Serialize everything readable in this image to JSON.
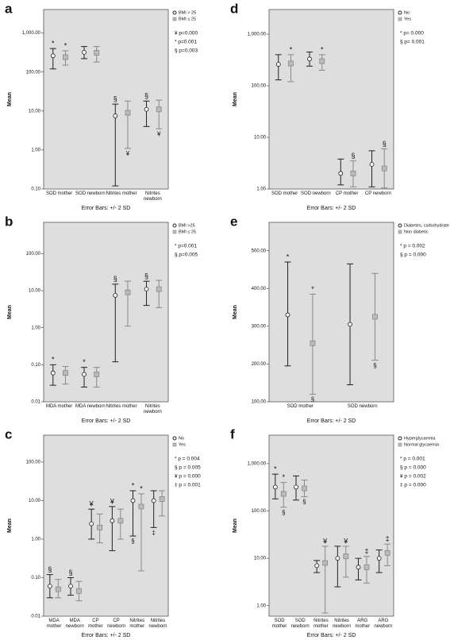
{
  "chart_data": [
    {
      "type": "errorbar",
      "panel": "a",
      "y_label": "Mean",
      "x_label": "Error Bars: +/- 2 SD",
      "log": true,
      "ylim": [
        0.1,
        4000
      ],
      "yticks": [
        {
          "value": 0.1,
          "label": "0.10"
        },
        {
          "value": 1,
          "label": "1.00"
        },
        {
          "value": 10,
          "label": "10.00"
        },
        {
          "value": 100,
          "label": "100.00"
        },
        {
          "value": 1000,
          "label": "1,000.00"
        }
      ],
      "categories": [
        "SOD mother",
        "SOD newborn",
        "Nitrites mother",
        "Nitrites newborn"
      ],
      "series": [
        {
          "name": "BMI > 25",
          "marker": "circle",
          "color": "#222222",
          "values": [
            260,
            320,
            7.5,
            11
          ],
          "lower": [
            120,
            220,
            0.12,
            4
          ],
          "upper": [
            400,
            450,
            15,
            18
          ],
          "above": [
            "*",
            null,
            "§",
            "§"
          ],
          "below": [
            null,
            null,
            null,
            null
          ]
        },
        {
          "name": "BMI ≤ 25",
          "marker": "square",
          "color": "#888888",
          "values": [
            240,
            310,
            9,
            11
          ],
          "lower": [
            150,
            180,
            1.1,
            3.5
          ],
          "upper": [
            350,
            450,
            18,
            19
          ],
          "above": [
            "*",
            null,
            null,
            null
          ],
          "below": [
            null,
            null,
            "¥",
            "¥"
          ]
        }
      ],
      "stats": [
        "¥ p=0.000",
        "* p=0.001",
        "§ p=0.003"
      ]
    },
    {
      "type": "errorbar",
      "panel": "b",
      "y_label": "Mean",
      "x_label": "Error Bars: +/- 2 SD",
      "log": true,
      "ylim": [
        0.01,
        700
      ],
      "yticks": [
        {
          "value": 0.01,
          "label": "0.01"
        },
        {
          "value": 0.1,
          "label": "0.10"
        },
        {
          "value": 1,
          "label": "1.00"
        },
        {
          "value": 10,
          "label": "10.00"
        },
        {
          "value": 100,
          "label": "100.00"
        }
      ],
      "categories": [
        "MDA mother",
        "MDA newborn",
        "Nitrites mother",
        "Nitrites newborn"
      ],
      "series": [
        {
          "name": "BMI >25",
          "marker": "circle",
          "color": "#222222",
          "values": [
            0.06,
            0.055,
            7.5,
            11
          ],
          "lower": [
            0.028,
            0.025,
            0.12,
            4
          ],
          "upper": [
            0.1,
            0.085,
            15,
            18
          ],
          "above": [
            "*",
            "*",
            "§",
            "§"
          ],
          "below": [
            null,
            null,
            null,
            null
          ]
        },
        {
          "name": "BMI ≤ 25",
          "marker": "square",
          "color": "#888888",
          "values": [
            0.06,
            0.055,
            9,
            11
          ],
          "lower": [
            0.03,
            0.025,
            1.1,
            3.5
          ],
          "upper": [
            0.09,
            0.085,
            18,
            19
          ],
          "above": [
            null,
            null,
            null,
            null
          ],
          "below": [
            null,
            null,
            null,
            null
          ]
        }
      ],
      "stats": [
        "* p=0.001",
        "§ p=0.005"
      ]
    },
    {
      "type": "errorbar",
      "panel": "c",
      "y_label": "Mean",
      "x_label": "Error Bars: +/- 2 SD",
      "log": true,
      "ylim": [
        0.01,
        500
      ],
      "yticks": [
        {
          "value": 0.01,
          "label": "0.01"
        },
        {
          "value": 0.1,
          "label": "0.10"
        },
        {
          "value": 1,
          "label": "1.00"
        },
        {
          "value": 10,
          "label": "10.00"
        },
        {
          "value": 100,
          "label": "100.00"
        }
      ],
      "categories": [
        "MDA mother",
        "MDA newborn",
        "CP mother",
        "CP newborn",
        "Nitrites mother",
        "Nitrites newborn"
      ],
      "series": [
        {
          "name": "No",
          "marker": "circle",
          "color": "#222222",
          "values": [
            0.06,
            0.06,
            2.5,
            3,
            10,
            10
          ],
          "lower": [
            0.03,
            0.035,
            1,
            0.5,
            1.2,
            2
          ],
          "upper": [
            0.12,
            0.1,
            6,
            7,
            18,
            18
          ],
          "above": [
            "§",
            "§",
            "¥",
            "¥",
            "*",
            null
          ],
          "below": [
            null,
            null,
            null,
            null,
            "§",
            "‡"
          ]
        },
        {
          "name": "Yes",
          "marker": "square",
          "color": "#888888",
          "values": [
            0.05,
            0.045,
            2,
            3,
            7,
            11
          ],
          "lower": [
            0.03,
            0.025,
            0.8,
            1,
            0.15,
            4
          ],
          "upper": [
            0.09,
            0.08,
            4.5,
            6,
            15,
            18
          ],
          "above": [
            null,
            null,
            null,
            null,
            "*",
            null
          ],
          "below": [
            null,
            null,
            null,
            null,
            null,
            null
          ]
        }
      ],
      "stats": [
        "* p = 0.004",
        "§ p = 0.005",
        "¥ p = 0.000",
        "‡ p = 0.001"
      ]
    },
    {
      "type": "errorbar",
      "panel": "d",
      "y_label": "Mean",
      "x_label": "Error Bars: +/- 2 SD",
      "log": true,
      "ylim": [
        1,
        3000
      ],
      "yticks": [
        {
          "value": 1,
          "label": "1.00"
        },
        {
          "value": 10,
          "label": "10.00"
        },
        {
          "value": 100,
          "label": "100.00"
        },
        {
          "value": 1000,
          "label": "1,000.00"
        }
      ],
      "categories": [
        "SOD mother",
        "SOD newborn",
        "CP mother",
        "CP newborn"
      ],
      "series": [
        {
          "name": "No",
          "marker": "circle",
          "color": "#222222",
          "values": [
            260,
            330,
            2,
            3
          ],
          "lower": [
            130,
            240,
            1.2,
            1.1
          ],
          "upper": [
            400,
            450,
            3.8,
            5.5
          ],
          "above": [
            null,
            null,
            null,
            null
          ],
          "below": [
            null,
            null,
            null,
            null
          ]
        },
        {
          "name": "Yes",
          "marker": "square",
          "color": "#888888",
          "values": [
            270,
            300,
            2,
            2.5
          ],
          "lower": [
            120,
            200,
            1.1,
            1.05
          ],
          "upper": [
            400,
            400,
            3.5,
            6
          ],
          "above": [
            "*",
            "*",
            "§",
            "§"
          ],
          "below": [
            null,
            null,
            null,
            null
          ]
        }
      ],
      "stats": [
        "* p= 0.000",
        "§ p= 0.001"
      ]
    },
    {
      "type": "errorbar",
      "panel": "e",
      "y_label": "Mean",
      "x_label": "Error Bars: +/- 2 SD",
      "log": false,
      "ylim": [
        100,
        575
      ],
      "yticks": [
        {
          "value": 100,
          "label": "100.00"
        },
        {
          "value": 200,
          "label": "200.00"
        },
        {
          "value": 300,
          "label": "300.00"
        },
        {
          "value": 400,
          "label": "400.00"
        },
        {
          "value": 500,
          "label": "500.00"
        }
      ],
      "categories": [
        "SOD mother",
        "SOD newborn"
      ],
      "series": [
        {
          "name": "Diabetes, carbohydrate intolerance",
          "marker": "circle",
          "color": "#222222",
          "values": [
            330,
            305
          ],
          "lower": [
            195,
            145
          ],
          "upper": [
            470,
            465
          ],
          "above": [
            "*",
            null
          ],
          "below": [
            null,
            null
          ]
        },
        {
          "name": "Non diabetic",
          "marker": "square",
          "color": "#888888",
          "values": [
            255,
            325
          ],
          "lower": [
            120,
            210
          ],
          "upper": [
            385,
            440
          ],
          "above": [
            "*",
            null
          ],
          "below": [
            "§",
            "§"
          ]
        }
      ],
      "stats": [
        "* p = 0.002",
        "§ p = 0.000"
      ]
    },
    {
      "type": "errorbar",
      "panel": "f",
      "y_label": "Mean",
      "x_label": "Error Bars: +/- 2 SD",
      "log": true,
      "ylim": [
        0.6,
        4000
      ],
      "yticks": [
        {
          "value": 1,
          "label": "1.00"
        },
        {
          "value": 10,
          "label": "10.00"
        },
        {
          "value": 100,
          "label": "100.00"
        },
        {
          "value": 1000,
          "label": "1,000.00"
        }
      ],
      "categories": [
        "SOD mother",
        "SOD newborn",
        "Nitrites mother",
        "Nitrites newborn",
        "ARG mother",
        "ARG newborn"
      ],
      "series": [
        {
          "name": "Hyperglycaemia",
          "marker": "circle",
          "color": "#222222",
          "values": [
            320,
            320,
            7,
            10,
            6.5,
            10
          ],
          "lower": [
            180,
            170,
            5,
            2.5,
            3.5,
            5
          ],
          "upper": [
            600,
            550,
            9,
            18,
            10,
            15
          ],
          "above": [
            "*",
            null,
            null,
            null,
            null,
            null
          ],
          "below": [
            null,
            null,
            null,
            null,
            null,
            null
          ]
        },
        {
          "name": "Normal glycaemia",
          "marker": "square",
          "color": "#888888",
          "values": [
            230,
            300,
            8,
            11,
            6.5,
            13
          ],
          "lower": [
            120,
            200,
            0.7,
            4,
            3,
            7
          ],
          "upper": [
            400,
            450,
            18,
            18,
            11,
            20
          ],
          "above": [
            "*",
            null,
            "¥",
            "¥",
            "‡",
            "‡"
          ],
          "below": [
            "§",
            "§",
            null,
            null,
            null,
            null
          ]
        }
      ],
      "stats": [
        "* p = 0.001",
        "§ p = 0.000",
        "¥ p = 0.002",
        "‡ p = 0.000"
      ]
    }
  ]
}
